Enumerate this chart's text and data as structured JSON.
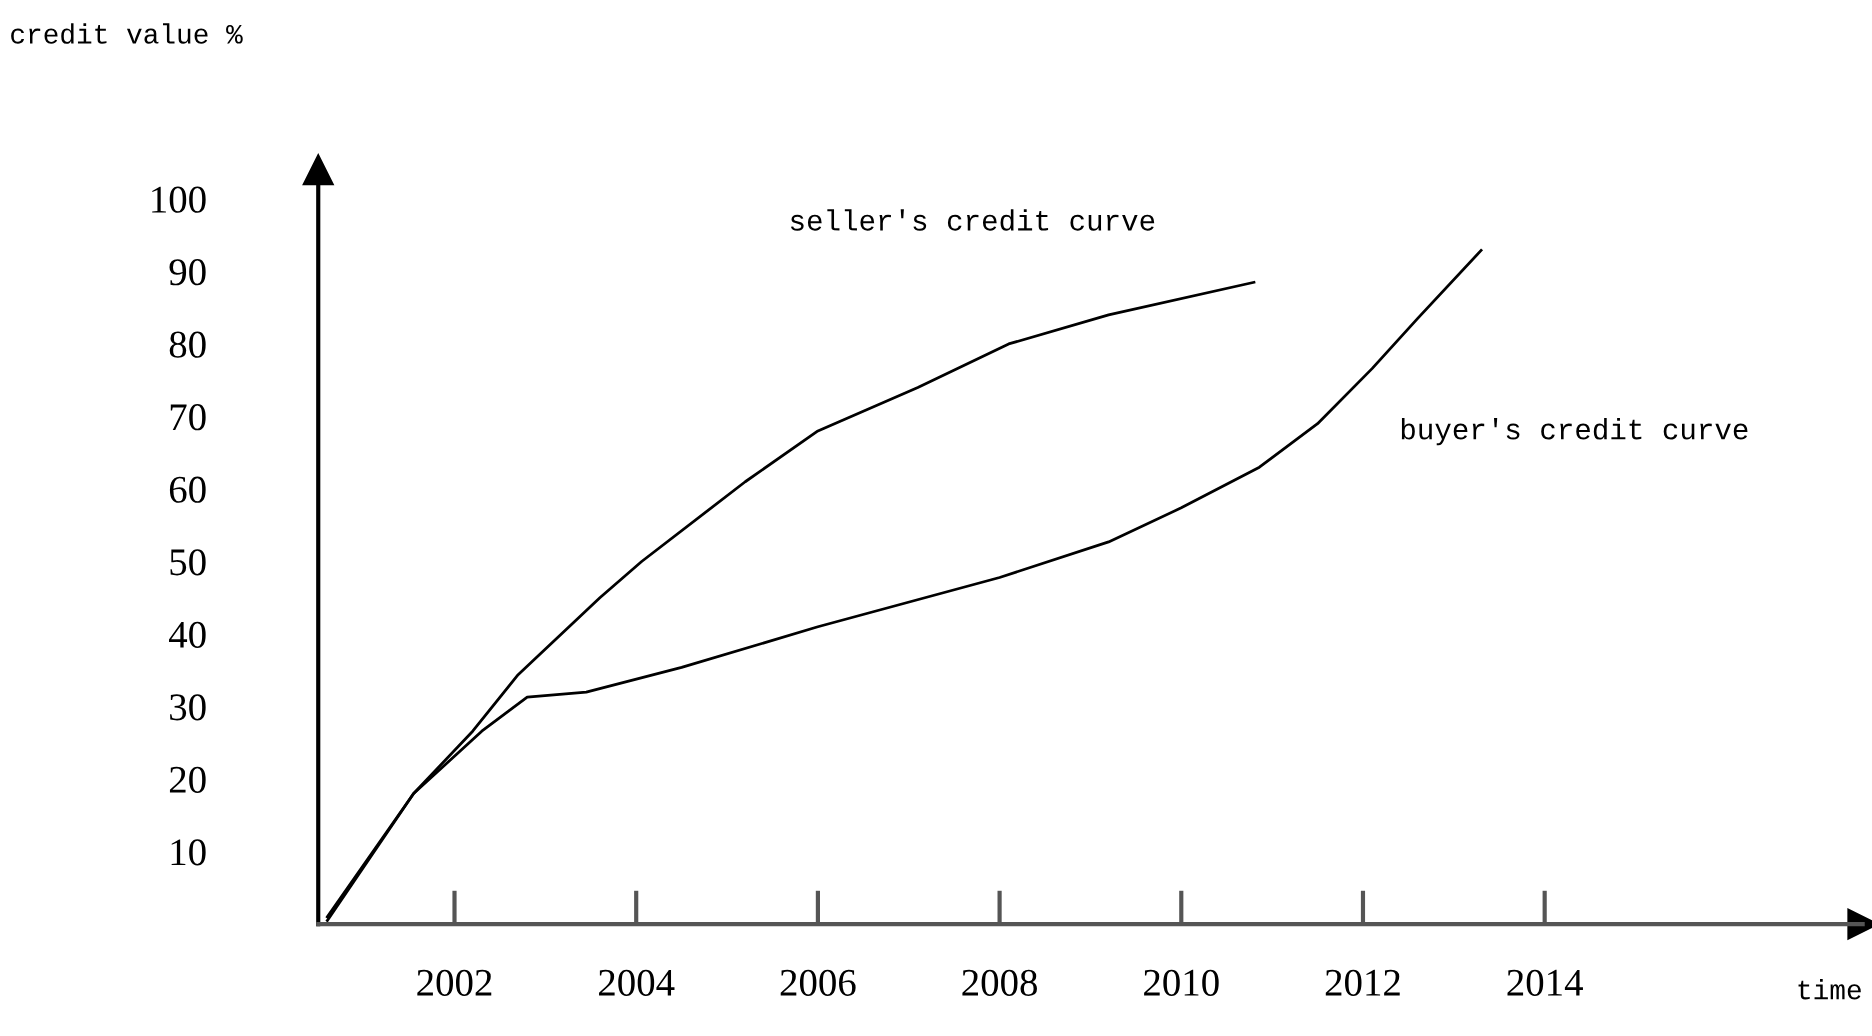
{
  "chart_data": {
    "type": "line",
    "xlabel": "time",
    "ylabel": "credit value %",
    "xlim": [
      2000.5,
      2017.5
    ],
    "ylim": [
      0,
      104
    ],
    "xticks": [
      2002,
      2004,
      2006,
      2008,
      2010,
      2012,
      2014
    ],
    "yticks": [
      10,
      20,
      30,
      40,
      50,
      60,
      70,
      80,
      90,
      100
    ],
    "grid": false,
    "legend": false,
    "marker": "none",
    "line_style": "solid",
    "series": [
      {
        "name": "seller's credit curve",
        "color": "#000000",
        "x": [
          2000.6,
          2001.55,
          2002.2,
          2002.7,
          2003.6,
          2004.06,
          2005.2,
          2006,
          2007.1,
          2008.1,
          2009.2,
          2010.8
        ],
        "values": [
          0.5,
          18,
          26.6,
          34.4,
          45,
          50,
          61,
          68,
          74,
          80,
          84,
          88.5
        ]
      },
      {
        "name": "buyer's credit curve",
        "color": "#000000",
        "x": [
          2000.6,
          2001.55,
          2002.3,
          2002.8,
          2003.45,
          2004.5,
          2006,
          2008,
          2009.2,
          2010,
          2010.86,
          2011.5,
          2012.1,
          2012.6,
          2013.3
        ],
        "values": [
          1,
          18,
          26.6,
          31.3,
          32,
          35.4,
          41,
          47.8,
          52.7,
          57.4,
          63,
          69,
          76.6,
          83.5,
          92.9
        ]
      }
    ]
  }
}
